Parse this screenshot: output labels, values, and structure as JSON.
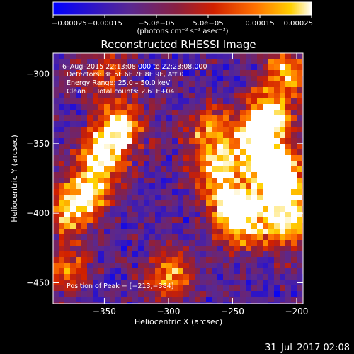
{
  "chart_data": {
    "type": "heatmap",
    "title": "Reconstructed RHESSI Image",
    "xlabel": "Heliocentric X (arcsec)",
    "ylabel": "Heliocentric Y (arcsec)",
    "xlim": [
      -390,
      -195
    ],
    "ylim": [
      -465,
      -285
    ],
    "x_ticks": [
      -350,
      -300,
      -250,
      -200
    ],
    "y_ticks": [
      -300,
      -350,
      -400,
      -450
    ],
    "x_tick_labels": [
      "−350",
      "−300",
      "−250",
      "−200"
    ],
    "y_tick_labels": [
      "−300",
      "−350",
      "−400",
      "−450"
    ],
    "colorbar": {
      "range": [
        -0.00025,
        0.00025
      ],
      "ticks": [
        -0.00025,
        -0.00015,
        -5e-05,
        5e-05,
        0.00015,
        0.00025
      ],
      "tick_labels": [
        "−0.00025",
        "−0.00015",
        "−5.0e−05",
        "5.0e−05",
        "0.00015",
        "0.00025"
      ],
      "units": "(photons cm⁻² s⁻¹ asec⁻²)",
      "colors": [
        "#0000ff",
        "#5a2890",
        "#8a2040",
        "#d02000",
        "#ff7000",
        "#ffd000",
        "#ffffff"
      ]
    },
    "annotations": [
      "6–Aug–2015 22:13:08.000 to 22:23:08.000",
      "Detectors: 3F 5F 6F 7F 8F 9F, Att 0",
      "Energy Range: 25.0 – 50.0 keV",
      "Clean     Total counts: 2.61E+04"
    ],
    "peak_label": "Position of Peak = [−213,−384]",
    "grid": false,
    "bright_regions": [
      {
        "x": -338,
        "y": -338,
        "level": 0.95
      },
      {
        "x": -352,
        "y": -360,
        "level": 0.85
      },
      {
        "x": -362,
        "y": -385,
        "level": 0.75
      },
      {
        "x": -378,
        "y": -398,
        "level": 0.7
      },
      {
        "x": -222,
        "y": -330,
        "level": 1.0
      },
      {
        "x": -232,
        "y": -350,
        "level": 0.95
      },
      {
        "x": -215,
        "y": -368,
        "level": 0.85
      },
      {
        "x": -250,
        "y": -395,
        "level": 0.85
      },
      {
        "x": -262,
        "y": -370,
        "level": 0.8
      },
      {
        "x": -213,
        "y": -384,
        "level": 1.0
      },
      {
        "x": -205,
        "y": -410,
        "level": 0.8
      },
      {
        "x": -208,
        "y": -300,
        "level": 0.75
      },
      {
        "x": -300,
        "y": -445,
        "level": 0.7
      },
      {
        "x": -268,
        "y": -340,
        "level": 0.7
      },
      {
        "x": -380,
        "y": -440,
        "level": 0.6
      },
      {
        "x": -350,
        "y": -298,
        "level": 0.45
      },
      {
        "x": -240,
        "y": -410,
        "level": 0.75
      }
    ]
  },
  "footer": {
    "timestamp": "31–Jul–2017 02:08"
  }
}
